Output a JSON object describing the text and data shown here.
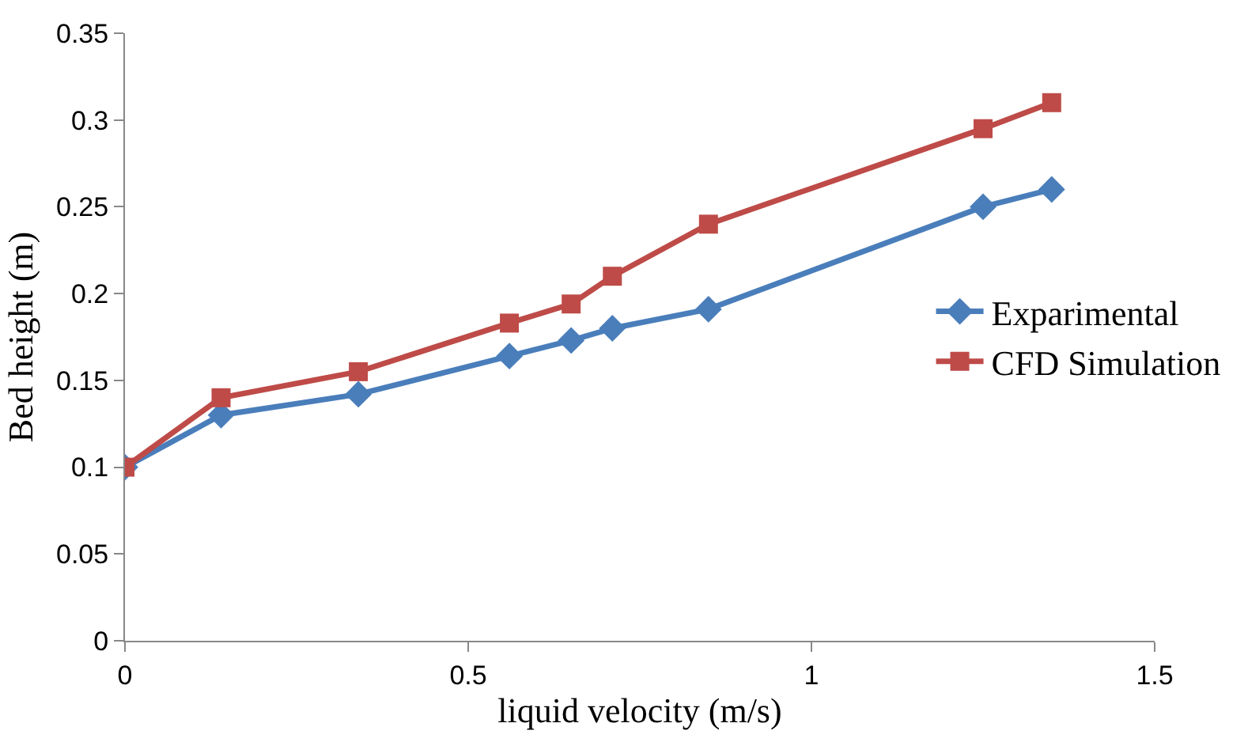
{
  "chart_data": {
    "type": "line",
    "xlabel": "liquid velocity (m/s)",
    "ylabel": "Bed height (m)",
    "xlim": [
      0,
      1.5
    ],
    "xticks": [
      0,
      0.5,
      1,
      1.5
    ],
    "ylim": [
      0,
      0.35
    ],
    "yticks": [
      0,
      0.05,
      0.1,
      0.15,
      0.2,
      0.25,
      0.3,
      0.35
    ],
    "legend": "right",
    "x": [
      0,
      0.14,
      0.34,
      0.56,
      0.65,
      0.71,
      0.85,
      1.25,
      1.35
    ],
    "series": [
      {
        "name": "Exparimental",
        "color": "#4a7ebb",
        "marker": "diamond",
        "values": [
          0.1,
          0.13,
          0.142,
          0.164,
          0.173,
          0.18,
          0.191,
          0.25,
          0.26
        ]
      },
      {
        "name": "CFD Simulation",
        "color": "#be4b48",
        "marker": "square",
        "values": [
          0.1,
          0.14,
          0.155,
          0.183,
          0.194,
          0.21,
          0.24,
          0.295,
          0.31
        ]
      }
    ]
  }
}
